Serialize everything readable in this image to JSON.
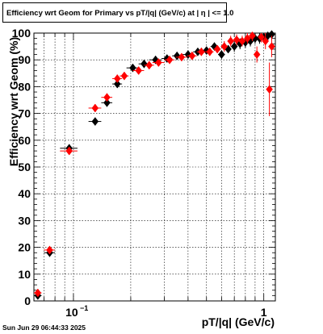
{
  "chart_data": {
    "type": "scatter",
    "title": "Efficiency wrt Geom for Primary vs pT/|q| (GeV/c) at |  η  | <= 1.0",
    "xlabel": "pT/|q| (GeV/c)",
    "ylabel": "Efficiency wrt Geom (%)",
    "xscale": "log",
    "xlim": [
      0.062,
      1.15
    ],
    "ylim": [
      0,
      100
    ],
    "x_tick_labels": [
      "10^-1",
      "1"
    ],
    "y_tick_labels": [
      "0",
      "10",
      "20",
      "30",
      "40",
      "50",
      "60",
      "70",
      "80",
      "90",
      "100"
    ],
    "grid": true,
    "series": [
      {
        "color": "#000000",
        "x": [
          0.065,
          0.075,
          0.095,
          0.13,
          0.15,
          0.17,
          0.205,
          0.235,
          0.27,
          0.31,
          0.35,
          0.4,
          0.45,
          0.5,
          0.55,
          0.6,
          0.65,
          0.7,
          0.75,
          0.8,
          0.85,
          0.9,
          0.95,
          1.0,
          1.05,
          1.1
        ],
        "y": [
          2,
          18,
          57,
          67,
          74,
          81,
          87,
          88.5,
          90,
          90.5,
          91.5,
          92,
          93,
          93.5,
          95,
          92,
          94,
          95,
          96,
          96.5,
          97,
          98,
          98,
          98.5,
          99,
          99.5
        ],
        "xerr": [
          0.003,
          0.005,
          0.01,
          0.01,
          0.01,
          0.01,
          0.015,
          0.015,
          0.02,
          0.02,
          0.02,
          0.025,
          0.025,
          0.025,
          0.025,
          0.025,
          0.025,
          0.025,
          0.025,
          0.025,
          0.025,
          0.025,
          0.025,
          0.025,
          0.025,
          0.025
        ],
        "yerr": [
          1,
          1.5,
          1.5,
          1.5,
          1.5,
          1.5,
          1.5,
          1.5,
          1.5,
          1.5,
          1.5,
          1.5,
          1.5,
          1.5,
          1.5,
          1.5,
          1.5,
          2,
          2,
          2,
          2,
          2,
          2,
          2,
          2,
          2
        ]
      },
      {
        "color": "#ff0000",
        "x": [
          0.065,
          0.075,
          0.095,
          0.13,
          0.15,
          0.17,
          0.185,
          0.22,
          0.25,
          0.28,
          0.32,
          0.37,
          0.42,
          0.47,
          0.52,
          0.57,
          0.62,
          0.67,
          0.72,
          0.77,
          0.82,
          0.87,
          0.92,
          0.97,
          1.02,
          1.07,
          1.1
        ],
        "y": [
          3,
          19,
          56,
          72,
          76,
          83,
          84,
          86,
          88,
          89,
          90,
          91,
          91.5,
          93,
          93,
          94,
          95,
          97,
          97.5,
          97,
          98,
          99,
          92,
          98.5,
          97,
          79,
          95
        ],
        "xerr": [
          0.003,
          0.005,
          0.01,
          0.01,
          0.01,
          0.01,
          0.01,
          0.015,
          0.015,
          0.02,
          0.02,
          0.025,
          0.025,
          0.025,
          0.025,
          0.025,
          0.025,
          0.025,
          0.025,
          0.025,
          0.025,
          0.025,
          0.025,
          0.025,
          0.025,
          0.025,
          0.025
        ],
        "yerr": [
          1,
          1.5,
          1.5,
          1.5,
          1.5,
          1.5,
          1.5,
          1.5,
          1.5,
          1.5,
          1.5,
          1.5,
          1.5,
          1.5,
          1.5,
          1.5,
          2,
          2,
          2,
          2,
          2,
          2,
          3,
          2,
          3,
          10,
          4
        ]
      }
    ]
  },
  "footer": {
    "datestamp": "Sun Jun 29 06:44:33 2025"
  }
}
